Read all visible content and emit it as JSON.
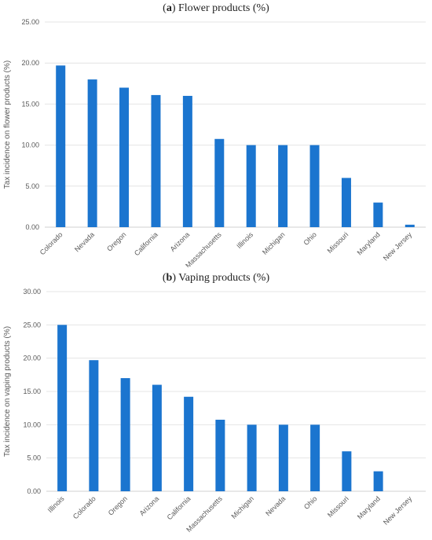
{
  "chart_data": [
    {
      "type": "bar",
      "panel_letter": "a",
      "title": "Flower products (%)",
      "xlabel": "",
      "ylabel": "Tax incidence on flower products (%)",
      "ylim": [
        0,
        25
      ],
      "yticks": [
        "0.00",
        "5.00",
        "10.00",
        "15.00",
        "20.00",
        "25.00"
      ],
      "categories": [
        "Colorado",
        "Nevada",
        "Oregon",
        "California",
        "Arizona",
        "Massachusetts",
        "Illinois",
        "Michigan",
        "Ohio",
        "Missouri",
        "Maryland",
        "New Jersey"
      ],
      "values": [
        19.7,
        18.0,
        17.0,
        16.1,
        16.0,
        10.75,
        10.0,
        10.0,
        10.0,
        6.0,
        3.0,
        0.3
      ],
      "color": "#1b75cf",
      "grid": true,
      "legend": "none"
    },
    {
      "type": "bar",
      "panel_letter": "b",
      "title": "Vaping products (%)",
      "xlabel": "",
      "ylabel": "Tax incidence on vaping products (%)",
      "ylim": [
        0,
        30
      ],
      "yticks": [
        "0.00",
        "5.00",
        "10.00",
        "15.00",
        "20.00",
        "25.00",
        "30.00"
      ],
      "categories": [
        "Illinois",
        "Colorado",
        "Oregon",
        "Arizona",
        "California",
        "Massachusetts",
        "Michigan",
        "Nevada",
        "Ohio",
        "Missouri",
        "Maryland",
        "New Jersey"
      ],
      "values": [
        25.0,
        19.7,
        17.0,
        16.0,
        14.2,
        10.75,
        10.0,
        10.0,
        10.0,
        6.0,
        3.0,
        0
      ],
      "color": "#1b75cf",
      "grid": true,
      "legend": "none"
    }
  ]
}
